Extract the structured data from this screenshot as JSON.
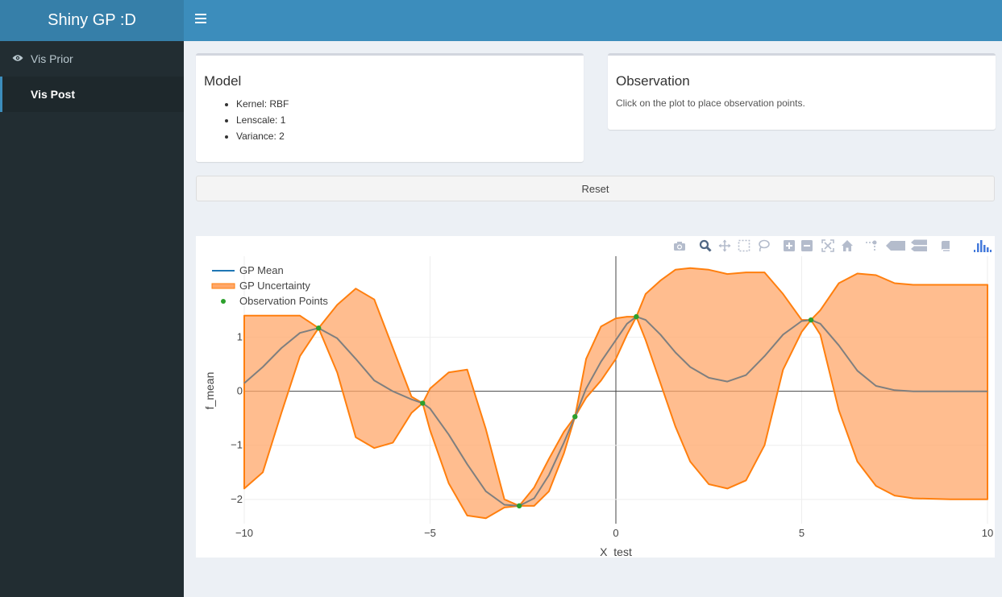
{
  "app": {
    "title": "Shiny GP :D"
  },
  "sidebar": {
    "items": [
      {
        "label": "Vis Prior",
        "icon": "eye-icon"
      },
      {
        "label": "Vis Post"
      }
    ]
  },
  "model_box": {
    "title": "Model",
    "items": [
      "Kernel: RBF",
      "Lenscale: 1",
      "Variance: 2"
    ]
  },
  "observation_box": {
    "title": "Observation",
    "text": "Click on the plot to place observation points."
  },
  "reset_label": "Reset",
  "colors": {
    "header": "#3c8dbc",
    "logo": "#367fa9",
    "sidebar": "#222d32",
    "mean": "#1f77b4",
    "band": "#ff7f0e",
    "points": "#2ca02c"
  },
  "toolbar_icons": [
    "camera-icon",
    "zoom-icon",
    "pan-icon",
    "box-select-icon",
    "lasso-icon",
    "zoom-in-icon",
    "zoom-out-icon",
    "autoscale-icon",
    "reset-axes-icon",
    "spike-lines-icon",
    "hover-closest-icon",
    "hover-compare-icon",
    "edit-icon",
    "plotly-logo-icon"
  ],
  "chart_data": {
    "type": "line",
    "xlabel": "X_test",
    "ylabel": "f_mean",
    "xlim": [
      -10,
      10
    ],
    "ylim": [
      -2.45,
      2.5
    ],
    "xticks": [
      -10,
      -5,
      0,
      5,
      10
    ],
    "yticks": [
      -2,
      -1,
      0,
      1
    ],
    "grid": true,
    "legend_position": "top-left",
    "series": [
      {
        "name": "GP Mean",
        "kind": "line",
        "x": [
          -10,
          -9.5,
          -9,
          -8.5,
          -8,
          -7.5,
          -7,
          -6.5,
          -6,
          -5.5,
          -5.2,
          -5,
          -4.5,
          -4,
          -3.5,
          -3,
          -2.6,
          -2.2,
          -1.8,
          -1.4,
          -1.1,
          -0.8,
          -0.4,
          0,
          0.3,
          0.55,
          0.8,
          1.2,
          1.6,
          2,
          2.5,
          3,
          3.5,
          4,
          4.5,
          5,
          5.25,
          5.5,
          6,
          6.5,
          7,
          7.5,
          8,
          9,
          10
        ],
        "y": [
          0.15,
          0.45,
          0.8,
          1.08,
          1.17,
          0.98,
          0.6,
          0.2,
          0,
          -0.15,
          -0.22,
          -0.32,
          -0.8,
          -1.35,
          -1.85,
          -2.1,
          -2.12,
          -1.98,
          -1.55,
          -0.95,
          -0.47,
          0.05,
          0.55,
          0.95,
          1.25,
          1.38,
          1.32,
          1.05,
          0.72,
          0.45,
          0.25,
          0.18,
          0.3,
          0.65,
          1.05,
          1.3,
          1.32,
          1.25,
          0.85,
          0.38,
          0.1,
          0.02,
          0.0,
          0.0,
          0.0
        ]
      },
      {
        "name": "GP Uncertainty",
        "kind": "band",
        "x": [
          -10,
          -9.5,
          -9,
          -8.5,
          -8,
          -7.5,
          -7,
          -6.5,
          -6,
          -5.5,
          -5.2,
          -5,
          -4.5,
          -4,
          -3.5,
          -3,
          -2.6,
          -2.2,
          -1.8,
          -1.4,
          -1.1,
          -0.8,
          -0.4,
          0,
          0.3,
          0.55,
          0.8,
          1.2,
          1.6,
          2,
          2.5,
          3,
          3.5,
          4,
          4.5,
          5,
          5.25,
          5.5,
          6,
          6.5,
          7,
          7.5,
          8,
          9,
          10
        ],
        "upper": [
          1.4,
          1.4,
          1.4,
          1.4,
          1.17,
          1.6,
          1.9,
          1.7,
          0.8,
          -0.1,
          -0.22,
          0.05,
          0.35,
          0.4,
          -0.7,
          -2.0,
          -2.12,
          -1.78,
          -1.25,
          -0.75,
          -0.47,
          0.6,
          1.2,
          1.35,
          1.38,
          1.38,
          1.8,
          2.05,
          2.25,
          2.28,
          2.25,
          2.17,
          2.2,
          2.2,
          1.8,
          1.32,
          1.32,
          1.5,
          2.0,
          2.18,
          2.15,
          2.0,
          1.97,
          1.97,
          1.97
        ],
        "lower": [
          -1.8,
          -1.5,
          -0.4,
          0.65,
          1.17,
          0.35,
          -0.85,
          -1.05,
          -0.95,
          -0.4,
          -0.22,
          -0.72,
          -1.7,
          -2.3,
          -2.35,
          -2.15,
          -2.12,
          -2.12,
          -1.85,
          -1.15,
          -0.47,
          -0.12,
          0.2,
          0.6,
          1.05,
          1.38,
          0.95,
          0.15,
          -0.65,
          -1.3,
          -1.72,
          -1.8,
          -1.65,
          -1.0,
          0.4,
          1.1,
          1.32,
          1.05,
          -0.35,
          -1.3,
          -1.75,
          -1.93,
          -1.98,
          -2.0,
          -2.0
        ]
      },
      {
        "name": "Observation Points",
        "kind": "points",
        "x": [
          -8.0,
          -5.2,
          -2.6,
          -1.1,
          0.55,
          5.25
        ],
        "y": [
          1.17,
          -0.22,
          -2.12,
          -0.47,
          1.38,
          1.32
        ]
      }
    ]
  }
}
